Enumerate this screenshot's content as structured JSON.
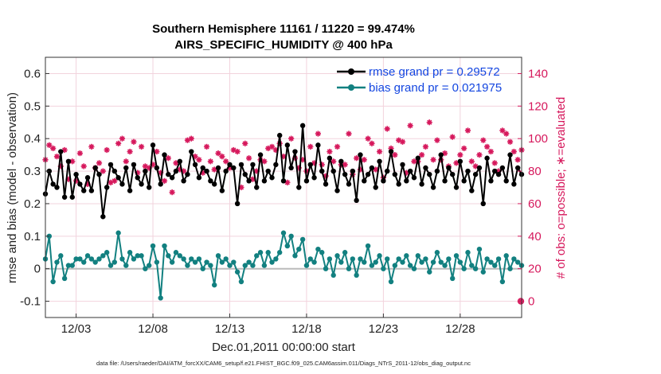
{
  "chart_data": {
    "type": "line",
    "title": "Southern Hemisphere 11161 / 11220 = 99.474%",
    "subtitle": "AIRS_SPECIFIC_HUMIDITY @ 400 hPa",
    "xlabel": "Dec.01,2011 00:00:00 start",
    "ylabel": "rmse and bias (model - observation)",
    "y2label": "# of obs: o=possible; ∗=evaluated",
    "footer": "data file: /Users/raeder/DAI/ATM_forcXX/CAM6_setup/f.e21.FHIST_BGC.f09_025.CAM6assim.011/Diags_NTrS_2011-12/obs_diag_output.nc",
    "xlim": [
      1,
      32
    ],
    "x_ticks": [
      3,
      8,
      13,
      18,
      23,
      28
    ],
    "x_tick_labels": [
      "12/03",
      "12/08",
      "12/13",
      "12/18",
      "12/23",
      "12/28"
    ],
    "ylim": [
      -0.15,
      0.65
    ],
    "y_ticks": [
      -0.1,
      0,
      0.1,
      0.2,
      0.3,
      0.4,
      0.5,
      0.6
    ],
    "y_tick_labels": [
      "-0.1",
      "0",
      "0.1",
      "0.2",
      "0.3",
      "0.4",
      "0.5",
      "0.6"
    ],
    "y2lim": [
      -10,
      150
    ],
    "y2_ticks": [
      0,
      20,
      40,
      60,
      80,
      100,
      120,
      140
    ],
    "y2_tick_labels": [
      "0",
      "20",
      "40",
      "60",
      "80",
      "100",
      "120",
      "140"
    ],
    "grid": true,
    "legend_position": "top-right",
    "colors": {
      "rmse": "#000000",
      "bias": "#128080",
      "obs": "#d6185c",
      "zero_line": "#bbbbbb",
      "grid": "#f2d3dd"
    },
    "time_step_days": 0.25,
    "series": [
      {
        "name": "rmse grand pr = 0.29572",
        "color": "#000000",
        "values": [
          0.23,
          0.3,
          0.26,
          0.25,
          0.36,
          0.22,
          0.33,
          0.22,
          0.29,
          0.26,
          0.24,
          0.28,
          0.24,
          0.31,
          0.29,
          0.16,
          0.25,
          0.32,
          0.3,
          0.28,
          0.26,
          0.31,
          0.24,
          0.32,
          0.28,
          0.26,
          0.3,
          0.25,
          0.38,
          0.31,
          0.26,
          0.35,
          0.29,
          0.28,
          0.3,
          0.33,
          0.27,
          0.29,
          0.36,
          0.32,
          0.28,
          0.31,
          0.3,
          0.27,
          0.26,
          0.31,
          0.24,
          0.3,
          0.32,
          0.31,
          0.2,
          0.32,
          0.29,
          0.27,
          0.32,
          0.25,
          0.35,
          0.27,
          0.3,
          0.28,
          0.32,
          0.41,
          0.27,
          0.38,
          0.31,
          0.36,
          0.25,
          0.44,
          0.27,
          0.32,
          0.28,
          0.38,
          0.3,
          0.26,
          0.34,
          0.3,
          0.24,
          0.33,
          0.29,
          0.26,
          0.3,
          0.21,
          0.35,
          0.27,
          0.29,
          0.31,
          0.25,
          0.33,
          0.27,
          0.3,
          0.36,
          0.29,
          0.26,
          0.32,
          0.27,
          0.3,
          0.28,
          0.34,
          0.26,
          0.31,
          0.29,
          0.25,
          0.3,
          0.35,
          0.27,
          0.31,
          0.29,
          0.25,
          0.33,
          0.27,
          0.3,
          0.24,
          0.29,
          0.31,
          0.2,
          0.34,
          0.27,
          0.3,
          0.29,
          0.31,
          0.27,
          0.35,
          0.26,
          0.31,
          0.29,
          0.33,
          0.28,
          0.3,
          0.27,
          0.34,
          0.26,
          0.28,
          0.33,
          0.25,
          0.36,
          0.3,
          0.27,
          0.32,
          0.28,
          0.3,
          0.26,
          0.31,
          0.29,
          0.33,
          0.27,
          0.3,
          0.26,
          0.32,
          0.28,
          0.3,
          0.25,
          0.35,
          0.28,
          0.3,
          0.27,
          0.31,
          0.29,
          0.24,
          0.32,
          0.27,
          0.3,
          0.36,
          0.29,
          0.26,
          0.31,
          0.28,
          0.3,
          0.27,
          0.33,
          0.29,
          0.25,
          0.31,
          0.28,
          0.38,
          0.22,
          0.23,
          0.29,
          0.26,
          0.3,
          0.24,
          0.27,
          0.32,
          0.3,
          0.4,
          0.3,
          0.28,
          0.29,
          0.27,
          0.25
        ]
      },
      {
        "name": "bias grand pr = 0.021975",
        "color": "#128080",
        "values": [
          0.03,
          0.1,
          -0.04,
          0.02,
          0.04,
          -0.03,
          0.01,
          0.01,
          0.03,
          0.03,
          0.02,
          0.04,
          0.03,
          0.02,
          0.03,
          0.04,
          0.05,
          0.01,
          0.02,
          0.11,
          0.03,
          0.01,
          0.05,
          0.03,
          0.04,
          0.04,
          0.0,
          0.01,
          0.07,
          0.02,
          -0.09,
          0.07,
          0.04,
          0.02,
          0.05,
          0.04,
          0.03,
          0.01,
          0.03,
          0.02,
          0.03,
          0.0,
          0.02,
          0.01,
          -0.05,
          0.04,
          0.02,
          0.03,
          0.01,
          0.02,
          -0.01,
          -0.04,
          0.01,
          0.02,
          0.01,
          0.04,
          0.05,
          0.01,
          0.05,
          0.02,
          0.03,
          0.05,
          0.11,
          0.07,
          0.1,
          0.04,
          0.06,
          0.09,
          0.01,
          0.03,
          0.02,
          0.06,
          0.05,
          0.0,
          0.03,
          -0.02,
          0.04,
          0.02,
          0.05,
          0.0,
          0.03,
          -0.02,
          0.03,
          0.02,
          0.07,
          0.01,
          0.02,
          0.04,
          0.0,
          0.03,
          -0.04,
          0.01,
          0.03,
          0.02,
          0.04,
          0.01,
          0.0,
          0.04,
          0.02,
          0.03,
          -0.01,
          0.02,
          0.05,
          0.02,
          0.01,
          0.03,
          -0.03,
          0.04,
          0.02,
          0.0,
          0.05,
          0.01,
          0.0,
          0.06,
          -0.01,
          0.03,
          0.02,
          0.01,
          0.03,
          -0.04,
          0.04,
          0.0,
          0.03,
          0.02,
          0.01,
          0.03,
          0.02,
          0.0,
          0.04,
          -0.04,
          0.03,
          0.02,
          0.03,
          -0.01,
          0.02,
          0.01,
          0.03,
          0.02,
          0.0,
          0.04,
          0.02,
          0.03,
          0.01,
          0.03,
          0.04,
          0.02,
          0.05,
          -0.06,
          0.04,
          0.0,
          0.03,
          0.02,
          0.04,
          0.03,
          0.02,
          0.01,
          0.03,
          0.02,
          0.04,
          0.05,
          0.02,
          0.03,
          -0.01,
          0.02,
          0.0,
          -0.03,
          0.02,
          0.01,
          0.03,
          -0.01,
          0.04,
          0.02,
          0.09,
          0.03,
          0.04,
          0.01,
          0.04,
          0.03,
          -0.01,
          0.05,
          0.02,
          0.03,
          0.0,
          0.06,
          0.02,
          -0.01,
          0.03,
          -0.02,
          0.08,
          0.05,
          0.03,
          0.05,
          0.03,
          0.03
        ]
      },
      {
        "name": "# of obs (evaluated)",
        "color": "#d6185c",
        "axis": "right",
        "values": [
          87,
          96,
          94,
          89,
          83,
          93,
          75,
          86,
          74,
          91,
          83,
          72,
          95,
          82,
          85,
          80,
          93,
          73,
          74,
          97,
          100,
          86,
          92,
          98,
          79,
          95,
          83,
          82,
          84,
          92,
          79,
          74,
          88,
          67,
          85,
          81,
          80,
          99,
          100,
          89,
          87,
          79,
          95,
          86,
          81,
          91,
          89,
          86,
          82,
          93,
          92,
          70,
          97,
          88,
          75,
          80,
          87,
          86,
          94,
          95,
          93,
          97,
          89,
          73,
          100,
          88,
          82,
          87,
          80,
          95,
          85,
          103,
          84,
          77,
          92,
          86,
          95,
          84,
          84,
          103,
          78,
          88,
          81,
          87,
          100,
          97,
          81,
          92,
          76,
          106,
          94,
          90,
          99,
          98,
          79,
          108,
          86,
          86,
          90,
          95,
          110,
          87,
          99,
          87,
          91,
          83,
          101,
          85,
          90,
          94,
          105,
          86,
          83,
          90,
          99,
          95,
          92,
          85,
          80,
          105,
          103,
          98,
          92,
          87,
          93,
          79,
          105,
          88,
          85,
          101,
          84,
          91,
          90,
          84,
          120,
          97,
          82,
          106,
          94,
          99,
          86,
          113,
          118,
          85,
          94,
          100,
          90,
          86,
          95,
          99,
          95,
          104,
          90,
          87,
          97,
          110,
          86,
          108,
          95,
          98,
          88,
          94,
          99,
          96,
          123,
          87,
          100,
          93,
          95,
          88,
          90,
          103,
          96,
          99,
          107,
          100,
          91,
          106,
          94,
          96,
          88,
          99,
          92,
          100,
          93,
          98,
          103,
          95,
          99,
          102,
          92,
          100
        ]
      }
    ],
    "outlier_point": {
      "x": 32.0,
      "value": 0,
      "axis": "right"
    }
  }
}
